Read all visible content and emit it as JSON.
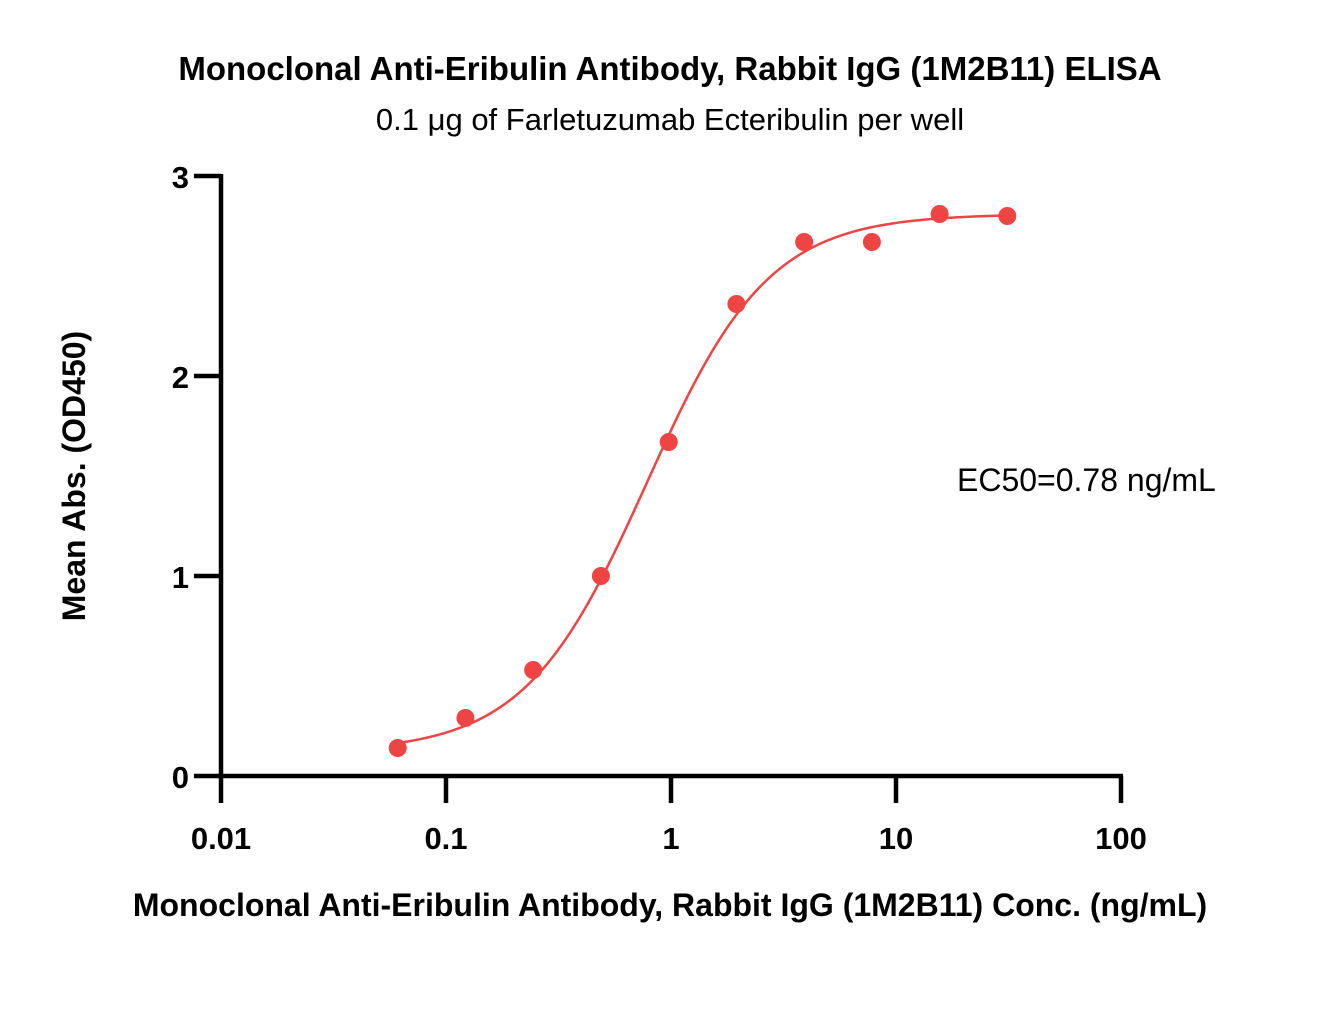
{
  "chart_data": {
    "type": "scatter",
    "title": "Monoclonal Anti-Eribulin Antibody, Rabbit IgG (1M2B11) ELISA",
    "subtitle": "0.1 μg of Farletuzumab Ecteribulin per well",
    "xlabel": "Monoclonal Anti-Eribulin Antibody, Rabbit IgG (1M2B11) Conc. (ng/mL)",
    "ylabel": "Mean Abs. (OD450)",
    "xscale": "log",
    "xlim": [
      0.01,
      100
    ],
    "ylim": [
      0,
      3
    ],
    "x_ticks": [
      0.01,
      0.1,
      1,
      10,
      100
    ],
    "x_tick_labels": [
      "0.01",
      "0.1",
      "1",
      "10",
      "100"
    ],
    "y_ticks": [
      0,
      1,
      2,
      3
    ],
    "y_tick_labels": [
      "0",
      "1",
      "2",
      "3"
    ],
    "grid": false,
    "annotation": "EC50=0.78 ng/mL",
    "color": "#ee4444",
    "series": [
      {
        "x": [
          0.061,
          0.122,
          0.244,
          0.488,
          0.977,
          1.953,
          3.906,
          7.813,
          15.625,
          31.25
        ],
        "y": [
          0.14,
          0.29,
          0.53,
          1.0,
          1.67,
          2.36,
          2.67,
          2.67,
          2.81,
          2.8
        ]
      }
    ],
    "fit": {
      "model": "4PL",
      "bottom": 0.12,
      "top": 2.81,
      "ec50": 0.78,
      "hill": 1.6
    }
  }
}
